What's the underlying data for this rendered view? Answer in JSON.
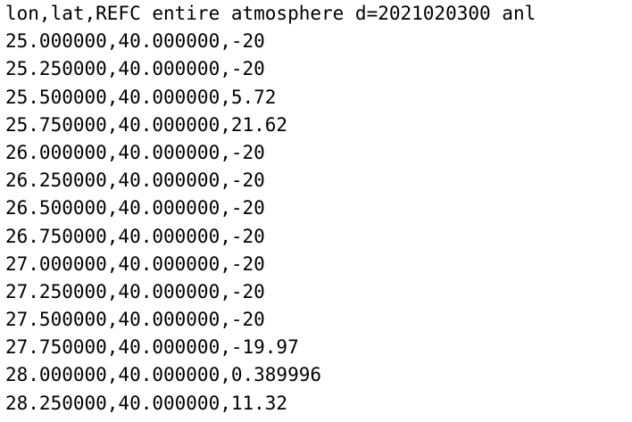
{
  "document": {
    "lines": [
      "lon,lat,REFC entire atmosphere d=2021020300 anl",
      "25.000000,40.000000,-20",
      "25.250000,40.000000,-20",
      "25.500000,40.000000,5.72",
      "25.750000,40.000000,21.62",
      "26.000000,40.000000,-20",
      "26.250000,40.000000,-20",
      "26.500000,40.000000,-20",
      "26.750000,40.000000,-20",
      "27.000000,40.000000,-20",
      "27.250000,40.000000,-20",
      "27.500000,40.000000,-20",
      "27.750000,40.000000,-19.97",
      "28.000000,40.000000,0.389996",
      "28.250000,40.000000,11.32"
    ]
  }
}
